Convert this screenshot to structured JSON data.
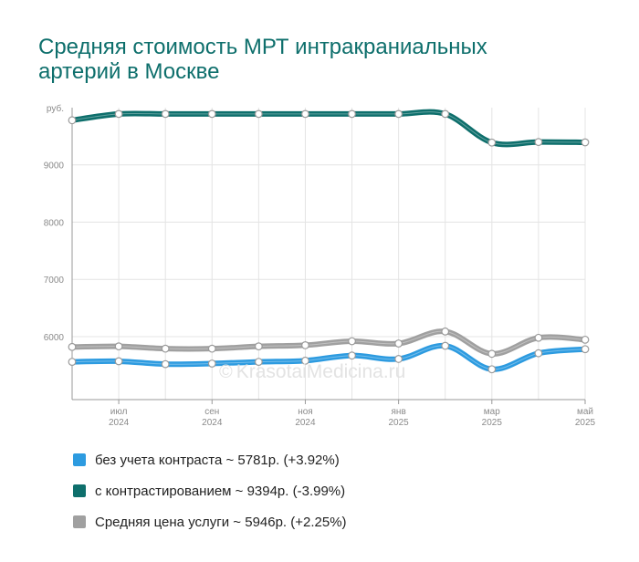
{
  "title": "Средняя стоимость МРТ интракраниальных артерий в Москве",
  "watermark": "KrasotaiMedicina.ru",
  "watermark_icon": "copyright-icon",
  "chart_data": {
    "type": "line",
    "y_unit_label": "руб.",
    "ylim": [
      4900,
      10000
    ],
    "yticks": [
      9000,
      8000,
      7000,
      6000
    ],
    "grid": true,
    "x": [
      "2024-06",
      "2024-07",
      "2024-08",
      "2024-09",
      "2024-10",
      "2024-11",
      "2024-12",
      "2025-01",
      "2025-02",
      "2025-03",
      "2025-04",
      "2025-05"
    ],
    "xtick_labels": [
      {
        "index": 1,
        "month": "июл",
        "year": "2024"
      },
      {
        "index": 3,
        "month": "сен",
        "year": "2024"
      },
      {
        "index": 5,
        "month": "ноя",
        "year": "2024"
      },
      {
        "index": 7,
        "month": "янв",
        "year": "2025"
      },
      {
        "index": 9,
        "month": "мар",
        "year": "2025"
      },
      {
        "index": 11,
        "month": "май",
        "year": "2025"
      }
    ],
    "series": [
      {
        "name": "с контрастированием",
        "color": "#0e6f6c",
        "values": [
          9780,
          9890,
          9890,
          9890,
          9890,
          9890,
          9890,
          9890,
          9890,
          9390,
          9400,
          9394
        ]
      },
      {
        "name": "Средняя цена услуги",
        "color": "#a0a0a0",
        "values": [
          5820,
          5830,
          5790,
          5790,
          5830,
          5850,
          5920,
          5880,
          6090,
          5700,
          5980,
          5946
        ]
      },
      {
        "name": "без учета контраста",
        "color": "#2d9be0",
        "values": [
          5560,
          5570,
          5520,
          5530,
          5560,
          5580,
          5670,
          5610,
          5840,
          5430,
          5710,
          5781
        ]
      }
    ],
    "legend_position": "bottom"
  },
  "legend": [
    {
      "label": "без учета контраста ~ 5781р. (+3.92%)",
      "color": "#2d9be0"
    },
    {
      "label": "с контрастированием ~ 9394р. (-3.99%)",
      "color": "#0e6f6c"
    },
    {
      "label": "Средняя цена услуги ~ 5946р. (+2.25%)",
      "color": "#a0a0a0"
    }
  ]
}
